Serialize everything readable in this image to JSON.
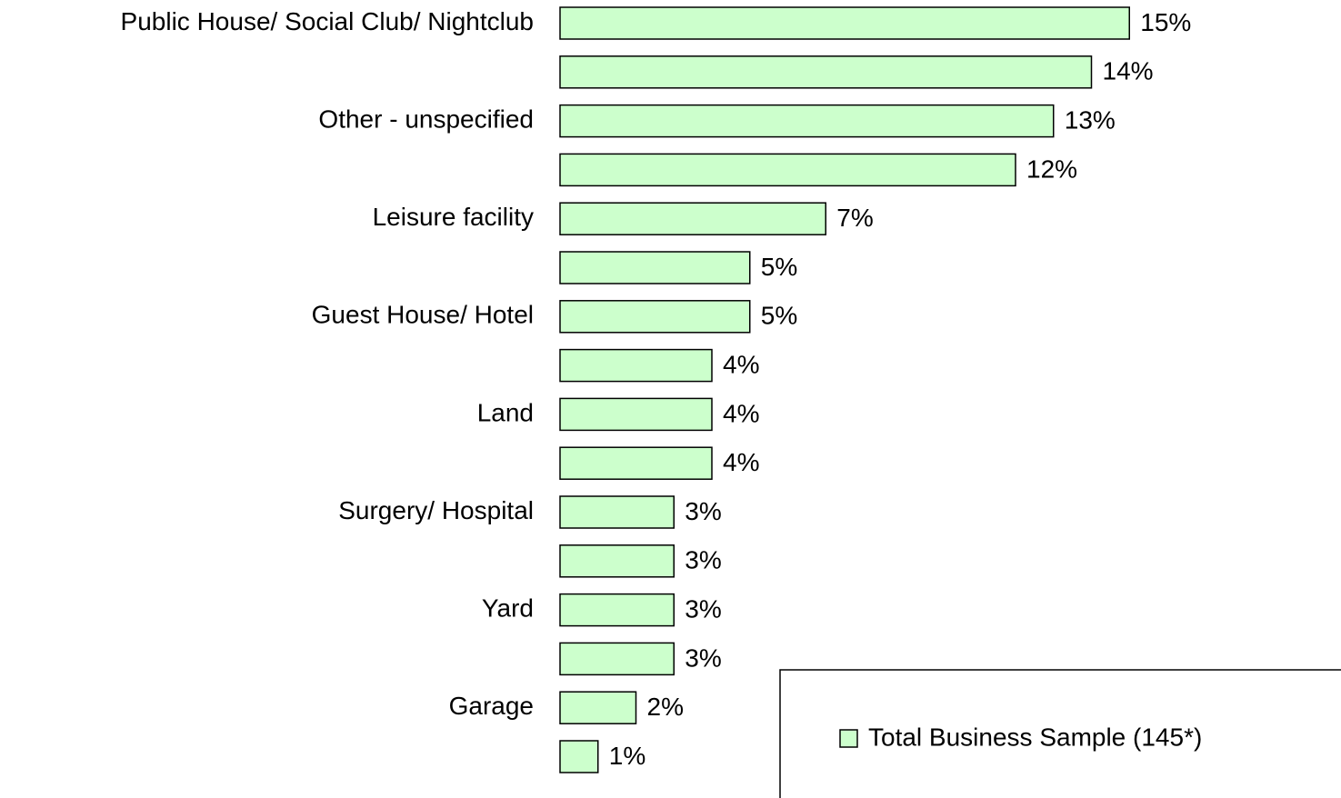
{
  "chart_data": {
    "type": "bar",
    "orientation": "horizontal",
    "categories": [
      "Public House/ Social Club/ Nightclub",
      null,
      "Other - unspecified",
      null,
      "Leisure facility",
      null,
      "Guest House/ Hotel",
      null,
      "Land",
      null,
      "Surgery/ Hospital",
      null,
      "Yard",
      null,
      "Garage",
      null
    ],
    "series": [
      {
        "name": "Total Business Sample (145*)",
        "color": "#ccffcc",
        "values": [
          15,
          14,
          13,
          12,
          7,
          5,
          5,
          4,
          4,
          4,
          3,
          3,
          3,
          3,
          2,
          1
        ],
        "value_labels": [
          "15%",
          "14%",
          "13%",
          "12%",
          "7%",
          "5%",
          "5%",
          "4%",
          "4%",
          "4%",
          "3%",
          "3%",
          "3%",
          "3%",
          "2%",
          "1%"
        ]
      }
    ],
    "legend": "bottom-right"
  }
}
